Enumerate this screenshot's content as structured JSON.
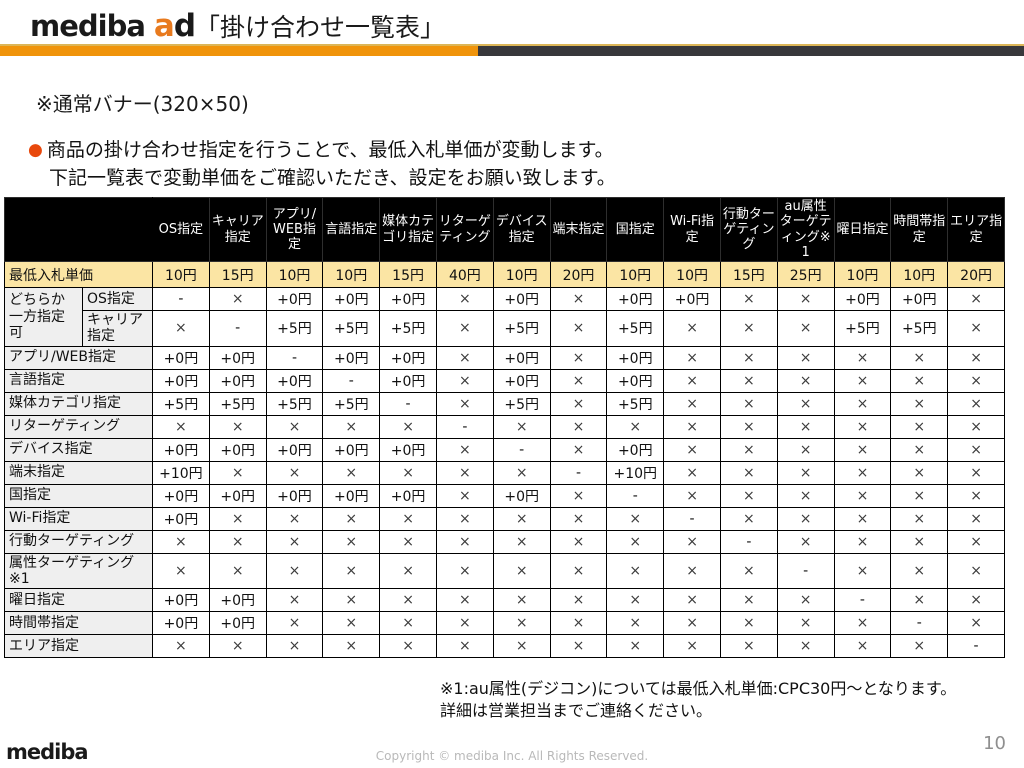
{
  "header": {
    "brand": "mediba",
    "brand_ad_accent": "a",
    "brand_ad_rest": "d",
    "title": "「掛け合わせ一覧表」"
  },
  "subtitle": "※通常バナー(320×50)",
  "intro": {
    "bullet_glyph": "●",
    "line1": "商品の掛け合わせ指定を行うことで、最低入札単価が変動します。",
    "line2": "下記一覧表で変動単価をご確認いただき、設定をお願い致します。"
  },
  "colors": {
    "accent_orange": "#f0940b",
    "logo_orange": "#e87a1e",
    "bullet_red_orange": "#e8480c",
    "bar_dark": "#38383b",
    "header_bg": "#000000",
    "header_text": "#ffffff",
    "base_row_bg": "#fbe5a4",
    "label_bg": "#efefef"
  },
  "table": {
    "columns": [
      "OS指定",
      "キャリア指定",
      "アプリ/WEB指定",
      "言語指定",
      "媒体カテゴリ指定",
      "リターゲティング",
      "デバイス指定",
      "端末指定",
      "国指定",
      "Wi-Fi指定",
      "行動ターゲティング",
      "au属性ターゲティング※1",
      "曜日指定",
      "時間帯指定",
      "エリア指定"
    ],
    "base_row": {
      "label": "最低入札単価",
      "values": [
        "10円",
        "15円",
        "10円",
        "10円",
        "15円",
        "40円",
        "10円",
        "20円",
        "10円",
        "10円",
        "15円",
        "25円",
        "10円",
        "10円",
        "20円"
      ]
    },
    "group_label": "どちらか一方指定可",
    "rows": [
      {
        "label": "OS指定",
        "values": [
          "-",
          "×",
          "+0円",
          "+0円",
          "+0円",
          "×",
          "+0円",
          "×",
          "+0円",
          "+0円",
          "×",
          "×",
          "+0円",
          "+0円",
          "×"
        ]
      },
      {
        "label": "キャリア指定",
        "values": [
          "×",
          "-",
          "+5円",
          "+5円",
          "+5円",
          "×",
          "+5円",
          "×",
          "+5円",
          "×",
          "×",
          "×",
          "+5円",
          "+5円",
          "×"
        ]
      },
      {
        "label": "アプリ/WEB指定",
        "values": [
          "+0円",
          "+0円",
          "-",
          "+0円",
          "+0円",
          "×",
          "+0円",
          "×",
          "+0円",
          "×",
          "×",
          "×",
          "×",
          "×",
          "×"
        ]
      },
      {
        "label": "言語指定",
        "values": [
          "+0円",
          "+0円",
          "+0円",
          "-",
          "+0円",
          "×",
          "+0円",
          "×",
          "+0円",
          "×",
          "×",
          "×",
          "×",
          "×",
          "×"
        ]
      },
      {
        "label": "媒体カテゴリ指定",
        "values": [
          "+5円",
          "+5円",
          "+5円",
          "+5円",
          "-",
          "×",
          "+5円",
          "×",
          "+5円",
          "×",
          "×",
          "×",
          "×",
          "×",
          "×"
        ]
      },
      {
        "label": "リターゲティング",
        "values": [
          "×",
          "×",
          "×",
          "×",
          "×",
          "-",
          "×",
          "×",
          "×",
          "×",
          "×",
          "×",
          "×",
          "×",
          "×"
        ]
      },
      {
        "label": "デバイス指定",
        "values": [
          "+0円",
          "+0円",
          "+0円",
          "+0円",
          "+0円",
          "×",
          "-",
          "×",
          "+0円",
          "×",
          "×",
          "×",
          "×",
          "×",
          "×"
        ]
      },
      {
        "label": "端末指定",
        "values": [
          "+10円",
          "×",
          "×",
          "×",
          "×",
          "×",
          "×",
          "-",
          "+10円",
          "×",
          "×",
          "×",
          "×",
          "×",
          "×"
        ]
      },
      {
        "label": "国指定",
        "values": [
          "+0円",
          "+0円",
          "+0円",
          "+0円",
          "+0円",
          "×",
          "+0円",
          "×",
          "-",
          "×",
          "×",
          "×",
          "×",
          "×",
          "×"
        ]
      },
      {
        "label": "Wi-Fi指定",
        "values": [
          "+0円",
          "×",
          "×",
          "×",
          "×",
          "×",
          "×",
          "×",
          "×",
          "-",
          "×",
          "×",
          "×",
          "×",
          "×"
        ]
      },
      {
        "label": "行動ターゲティング",
        "values": [
          "×",
          "×",
          "×",
          "×",
          "×",
          "×",
          "×",
          "×",
          "×",
          "×",
          "-",
          "×",
          "×",
          "×",
          "×"
        ]
      },
      {
        "label": "属性ターゲティング※1",
        "values": [
          "×",
          "×",
          "×",
          "×",
          "×",
          "×",
          "×",
          "×",
          "×",
          "×",
          "×",
          "-",
          "×",
          "×",
          "×"
        ]
      },
      {
        "label": "曜日指定",
        "values": [
          "+0円",
          "+0円",
          "×",
          "×",
          "×",
          "×",
          "×",
          "×",
          "×",
          "×",
          "×",
          "×",
          "-",
          "×",
          "×"
        ]
      },
      {
        "label": "時間帯指定",
        "values": [
          "+0円",
          "+0円",
          "×",
          "×",
          "×",
          "×",
          "×",
          "×",
          "×",
          "×",
          "×",
          "×",
          "×",
          "-",
          "×"
        ]
      },
      {
        "label": "エリア指定",
        "values": [
          "×",
          "×",
          "×",
          "×",
          "×",
          "×",
          "×",
          "×",
          "×",
          "×",
          "×",
          "×",
          "×",
          "×",
          "-"
        ]
      }
    ]
  },
  "footnote": {
    "line1": "※1:au属性(デジコン)については最低入札単価:CPC30円〜となります。",
    "line2": "詳細は営業担当までご連絡ください。"
  },
  "footer": {
    "logo": "mediba",
    "copyright": "Copyright © mediba Inc. All Rights Reserved.",
    "page": "10"
  }
}
